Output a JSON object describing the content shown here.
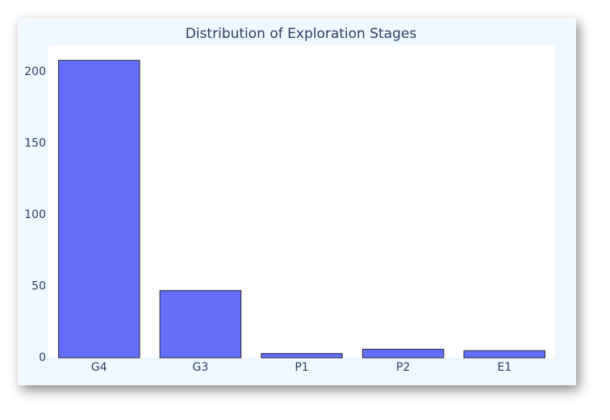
{
  "chart_data": {
    "type": "bar",
    "title": "Distribution of Exploration Stages",
    "categories": [
      "G4",
      "G3",
      "P1",
      "P2",
      "E1"
    ],
    "values": [
      208,
      47,
      3,
      6,
      5
    ],
    "color": "#636efa",
    "ylim": [
      0,
      218
    ],
    "yticks": [
      0,
      50,
      100,
      150,
      200
    ],
    "grid": false
  }
}
